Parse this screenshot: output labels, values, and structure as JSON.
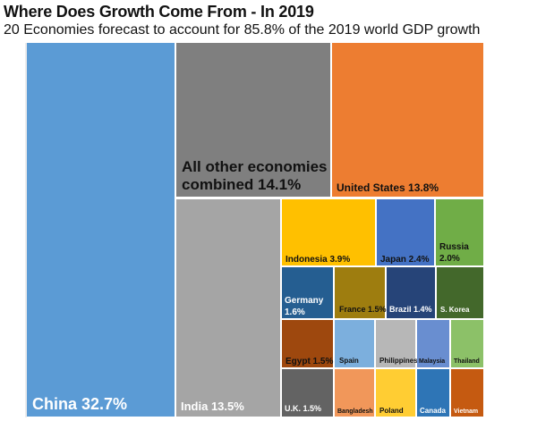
{
  "chart_data": {
    "type": "treemap",
    "title": "Where Does Growth Come From - In 2019",
    "subtitle": "20 Economies forecast to account for 85.8% of the 2019 world GDP growth",
    "items": [
      {
        "name": "China",
        "value": 32.7,
        "label": "China 32.7%",
        "color": "#5b9bd5"
      },
      {
        "name": "All other economies combined",
        "value": 14.1,
        "label": "All other economies combined 14.1%",
        "color": "#7f7f7f"
      },
      {
        "name": "United States",
        "value": 13.8,
        "label": "United States 13.8%",
        "color": "#ed7d31"
      },
      {
        "name": "India",
        "value": 13.5,
        "label": "India 13.5%",
        "color": "#a5a5a5"
      },
      {
        "name": "Indonesia",
        "value": 3.9,
        "label": "Indonesia 3.9%",
        "color": "#ffc000"
      },
      {
        "name": "Japan",
        "value": 2.4,
        "label": "Japan 2.4%",
        "color": "#4472c4"
      },
      {
        "name": "Russia",
        "value": 2.0,
        "label": "Russia 2.0%",
        "color": "#70ad47"
      },
      {
        "name": "Germany",
        "value": 1.6,
        "label": "Germany 1.6%",
        "color": "#255e91"
      },
      {
        "name": "France",
        "value": 1.5,
        "label": "France 1.5%",
        "color": "#9e7d0f"
      },
      {
        "name": "Brazil",
        "value": 1.4,
        "label": "Brazil 1.4%",
        "color": "#264478"
      },
      {
        "name": "S. Korea",
        "value": null,
        "label": "S. Korea",
        "color": "#43682b"
      },
      {
        "name": "Egypt",
        "value": 1.5,
        "label": "Egypt 1.5%",
        "color": "#9e480e"
      },
      {
        "name": "Spain",
        "value": null,
        "label": "Spain",
        "color": "#7cafdd"
      },
      {
        "name": "Philippines",
        "value": null,
        "label": "Philippines",
        "color": "#b7b7b7"
      },
      {
        "name": "Malaysia",
        "value": null,
        "label": "Malaysia",
        "color": "#698ed0"
      },
      {
        "name": "Thailand",
        "value": null,
        "label": "Thailand",
        "color": "#8cc168"
      },
      {
        "name": "U.K.",
        "value": 1.5,
        "label": "U.K. 1.5%",
        "color": "#636363"
      },
      {
        "name": "Bangladesh",
        "value": null,
        "label": "Bangladesh",
        "color": "#f1975a"
      },
      {
        "name": "Poland",
        "value": null,
        "label": "Poland",
        "color": "#ffcd33"
      },
      {
        "name": "Canada",
        "value": null,
        "label": "Canada",
        "color": "#2e75b6"
      },
      {
        "name": "Vietnam",
        "value": null,
        "label": "Vietnam",
        "color": "#c55a11"
      }
    ]
  }
}
